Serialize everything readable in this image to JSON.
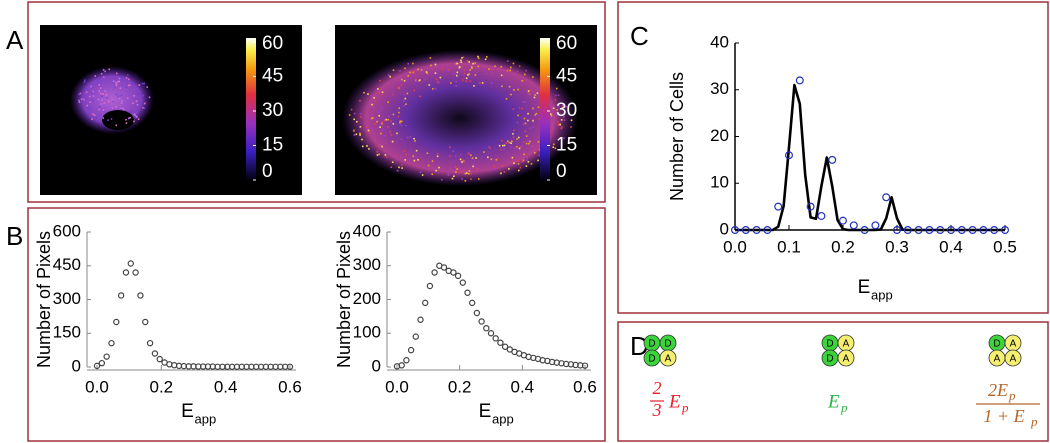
{
  "panel_labels": [
    "A",
    "B",
    "C",
    "D"
  ],
  "colorbar": {
    "ticks": [
      60,
      45,
      30,
      15,
      0
    ]
  },
  "chart_data": [
    {
      "type": "scatter",
      "ylabel": "Number of Pixels",
      "xlabel": "E",
      "xlabel_sub": "app",
      "color": "#444444",
      "x": [
        0,
        0.015,
        0.03,
        0.045,
        0.06,
        0.075,
        0.09,
        0.105,
        0.12,
        0.135,
        0.15,
        0.165,
        0.18,
        0.195,
        0.21,
        0.225,
        0.24,
        0.255,
        0.27,
        0.285,
        0.3,
        0.315,
        0.33,
        0.345,
        0.36,
        0.375,
        0.39,
        0.405,
        0.42,
        0.435,
        0.45,
        0.465,
        0.48,
        0.495,
        0.51,
        0.525,
        0.54,
        0.555,
        0.57,
        0.585,
        0.6
      ],
      "values": [
        5,
        17,
        46,
        106,
        200,
        318,
        420,
        460,
        420,
        318,
        200,
        106,
        60,
        35,
        20,
        12,
        8,
        5,
        4,
        3,
        3,
        2,
        2,
        2,
        2,
        1,
        1,
        1,
        1,
        1,
        1,
        1,
        1,
        1,
        1,
        1,
        1,
        1,
        1,
        1,
        1
      ],
      "xlim": [
        0,
        0.6
      ],
      "ylim": [
        0,
        600
      ],
      "xticks": [
        {
          "value": 0,
          "label": "0.0"
        },
        0.2,
        0.4,
        0.6
      ],
      "yticks": [
        0,
        150,
        300,
        450,
        600
      ]
    },
    {
      "type": "scatter",
      "ylabel": "Number of Pixels",
      "xlabel": "E",
      "xlabel_sub": "app",
      "color": "#444444",
      "x": [
        0,
        0.015,
        0.03,
        0.045,
        0.06,
        0.075,
        0.09,
        0.105,
        0.12,
        0.135,
        0.15,
        0.165,
        0.18,
        0.195,
        0.21,
        0.225,
        0.24,
        0.255,
        0.27,
        0.285,
        0.3,
        0.315,
        0.33,
        0.345,
        0.36,
        0.375,
        0.39,
        0.405,
        0.42,
        0.435,
        0.45,
        0.465,
        0.48,
        0.495,
        0.51,
        0.525,
        0.54,
        0.555,
        0.57,
        0.585,
        0.6
      ],
      "values": [
        2,
        5,
        20,
        50,
        90,
        140,
        190,
        240,
        280,
        300,
        295,
        285,
        280,
        270,
        250,
        220,
        190,
        160,
        135,
        115,
        100,
        85,
        72,
        60,
        52,
        45,
        40,
        35,
        30,
        27,
        24,
        20,
        18,
        15,
        13,
        11,
        9,
        8,
        6,
        5,
        4
      ],
      "xlim": [
        0,
        0.6
      ],
      "ylim": [
        0,
        400
      ],
      "xticks": [
        {
          "value": 0,
          "label": "0.0"
        },
        0.2,
        0.4,
        0.6
      ],
      "yticks": [
        0,
        100,
        200,
        300,
        400
      ]
    },
    {
      "type": "line",
      "ylabel": "Number of Cells",
      "xlabel": "E",
      "xlabel_sub": "app",
      "xlim": [
        0,
        0.5
      ],
      "ylim": [
        0,
        40
      ],
      "xticks": [
        {
          "value": 0,
          "label": "0.0"
        },
        0.1,
        0.2,
        0.3,
        0.4,
        0.5
      ],
      "yticks": [
        0,
        10,
        20,
        30,
        40
      ],
      "series": [
        {
          "mode": "markers",
          "color": "#1f2fbf",
          "x": [
            0,
            0.02,
            0.04,
            0.06,
            0.08,
            0.1,
            0.12,
            0.14,
            0.16,
            0.18,
            0.2,
            0.22,
            0.24,
            0.26,
            0.28,
            0.3,
            0.32,
            0.34,
            0.36,
            0.38,
            0.4,
            0.42,
            0.44,
            0.46,
            0.48,
            0.5
          ],
          "values": [
            0,
            0,
            0,
            0,
            5,
            16,
            32,
            5,
            3,
            15,
            2,
            1,
            0,
            1,
            7,
            0,
            0,
            0,
            0,
            0,
            0,
            0,
            0,
            0,
            0,
            0
          ]
        },
        {
          "mode": "lines",
          "color": "#000000",
          "x": [
            0,
            0.01,
            0.02,
            0.03,
            0.04,
            0.05,
            0.06,
            0.07,
            0.08,
            0.09,
            0.1,
            0.11,
            0.12,
            0.13,
            0.14,
            0.15,
            0.16,
            0.17,
            0.18,
            0.19,
            0.2,
            0.21,
            0.22,
            0.23,
            0.24,
            0.25,
            0.26,
            0.27,
            0.28,
            0.29,
            0.3,
            0.31,
            0.32,
            0.33,
            0.34,
            0.35,
            0.36,
            0.37,
            0.38,
            0.39,
            0.4,
            0.41,
            0.42,
            0.43,
            0.44,
            0.45,
            0.46,
            0.47,
            0.48,
            0.49,
            0.5
          ],
          "values": [
            0,
            0,
            0,
            0,
            0,
            0,
            0,
            0,
            0.7,
            5.1,
            17.7,
            31,
            27,
            11.8,
            2.7,
            2.4,
            9.4,
            15.5,
            9.4,
            2.1,
            0.2,
            0,
            0,
            0,
            0,
            0,
            0,
            0.1,
            2.5,
            7,
            2.5,
            0.1,
            0,
            0,
            0,
            0,
            0,
            0,
            0,
            0,
            0,
            0,
            0,
            0,
            0,
            0,
            0,
            0,
            0,
            0,
            0
          ]
        }
      ]
    }
  ],
  "panel_d": {
    "items": [
      {
        "circles": [
          "D",
          "D",
          "D",
          "A"
        ],
        "color": "#e8202a",
        "formula": {
          "num": "2",
          "den": "3",
          "term": "E",
          "sub": "p"
        }
      },
      {
        "circles": [
          "D",
          "A",
          "D",
          "A"
        ],
        "color": "#2cb34a",
        "formula": {
          "term": "E",
          "sub": "p"
        }
      },
      {
        "circles": [
          "D",
          "A",
          "A",
          "A"
        ],
        "color": "#b5652a",
        "formula": {
          "num": "2E",
          "num_sub": "p",
          "den": "1 + E",
          "den_sub": "p"
        }
      }
    ]
  }
}
